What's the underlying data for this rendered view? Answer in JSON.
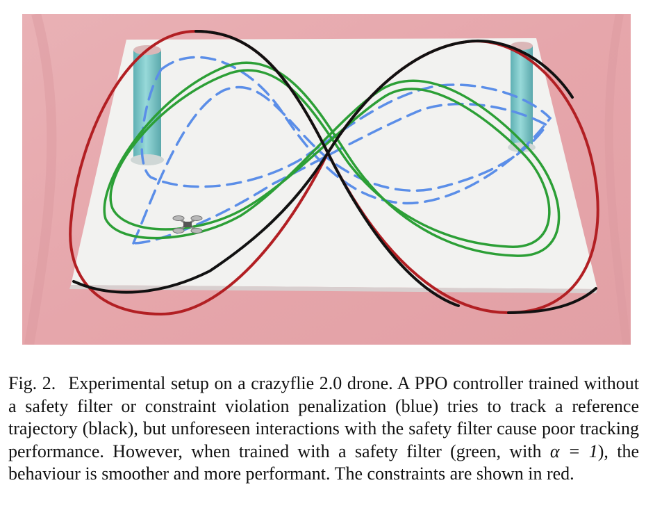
{
  "figure": {
    "colors": {
      "background": "#e7a8ad",
      "platform": "#f3f3f1",
      "reference": "#111111",
      "constraint": "#b21f23",
      "filtered": "#2c9f36",
      "unfiltered": "#5b8ee8",
      "pillar": "#6cc1c3"
    },
    "drone_icon": "quadcopter-icon"
  },
  "caption": {
    "label": "Fig. 2.",
    "text_1": "Experimental setup on a crazyflie 2.0 drone. A PPO controller trained without a safety filter or constraint violation penalization (blue) tries to track a reference trajectory (black), but unforeseen interactions with the safety filter cause poor tracking performance. However, when trained with a safety filter (green, with ",
    "alpha": "α = 1",
    "text_2": "), the behaviour is smoother and more performant. The constraints are shown in red."
  }
}
